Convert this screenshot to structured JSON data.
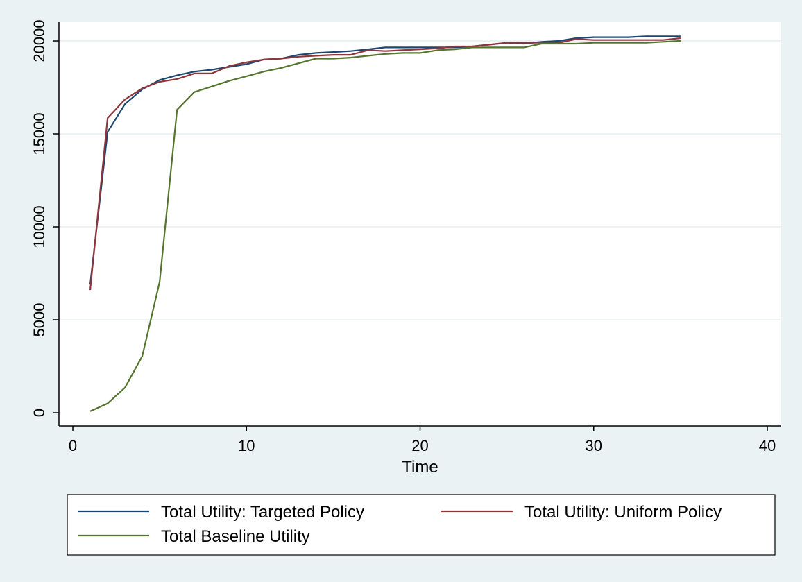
{
  "chart_data": {
    "type": "line",
    "title": "",
    "xlabel": "Time",
    "ylabel": "",
    "xlim": [
      0,
      40
    ],
    "ylim": [
      0,
      20000
    ],
    "xticks": [
      0,
      10,
      20,
      30,
      40
    ],
    "yticks": [
      0,
      5000,
      10000,
      15000,
      20000
    ],
    "grid": "horizontal",
    "legend_position": "bottom",
    "series": [
      {
        "name": "Total Utility: Targeted Policy",
        "color": "#1a476f",
        "x": [
          1,
          2,
          3,
          4,
          5,
          6,
          7,
          8,
          9,
          10,
          11,
          12,
          13,
          14,
          15,
          16,
          17,
          18,
          19,
          20,
          21,
          22,
          23,
          24,
          25,
          26,
          27,
          28,
          29,
          30,
          31,
          32,
          33,
          34,
          35
        ],
        "y": [
          6900,
          15100,
          16600,
          17400,
          17900,
          18150,
          18350,
          18450,
          18600,
          18750,
          19000,
          19050,
          19250,
          19350,
          19400,
          19450,
          19550,
          19650,
          19650,
          19650,
          19650,
          19650,
          19700,
          19800,
          19900,
          19850,
          19950,
          20000,
          20150,
          20200,
          20200,
          20200,
          20250,
          20250,
          20250
        ]
      },
      {
        "name": "Total Utility: Uniform Policy",
        "color": "#90353b",
        "x": [
          1,
          2,
          3,
          4,
          5,
          6,
          7,
          8,
          9,
          10,
          11,
          12,
          13,
          14,
          15,
          16,
          17,
          18,
          19,
          20,
          21,
          22,
          23,
          24,
          25,
          26,
          27,
          28,
          29,
          30,
          31,
          32,
          33,
          34,
          35
        ],
        "y": [
          6600,
          15850,
          16850,
          17450,
          17800,
          17950,
          18250,
          18250,
          18650,
          18850,
          19000,
          19050,
          19150,
          19200,
          19250,
          19250,
          19500,
          19450,
          19500,
          19550,
          19600,
          19700,
          19700,
          19800,
          19900,
          19900,
          19900,
          19900,
          20100,
          20050,
          20050,
          20050,
          20050,
          20050,
          20150
        ]
      },
      {
        "name": "Total Baseline Utility",
        "color": "#55752f",
        "x": [
          1,
          2,
          3,
          4,
          5,
          6,
          7,
          8,
          9,
          10,
          11,
          12,
          13,
          14,
          15,
          16,
          17,
          18,
          19,
          20,
          21,
          22,
          23,
          24,
          25,
          26,
          27,
          28,
          29,
          30,
          31,
          32,
          33,
          34,
          35
        ],
        "y": [
          80,
          500,
          1350,
          3050,
          7050,
          16300,
          17250,
          17550,
          17850,
          18100,
          18350,
          18550,
          18800,
          19050,
          19050,
          19100,
          19200,
          19300,
          19350,
          19350,
          19500,
          19550,
          19650,
          19650,
          19650,
          19650,
          19850,
          19850,
          19850,
          19900,
          19900,
          19900,
          19900,
          19950,
          20000
        ]
      }
    ]
  }
}
